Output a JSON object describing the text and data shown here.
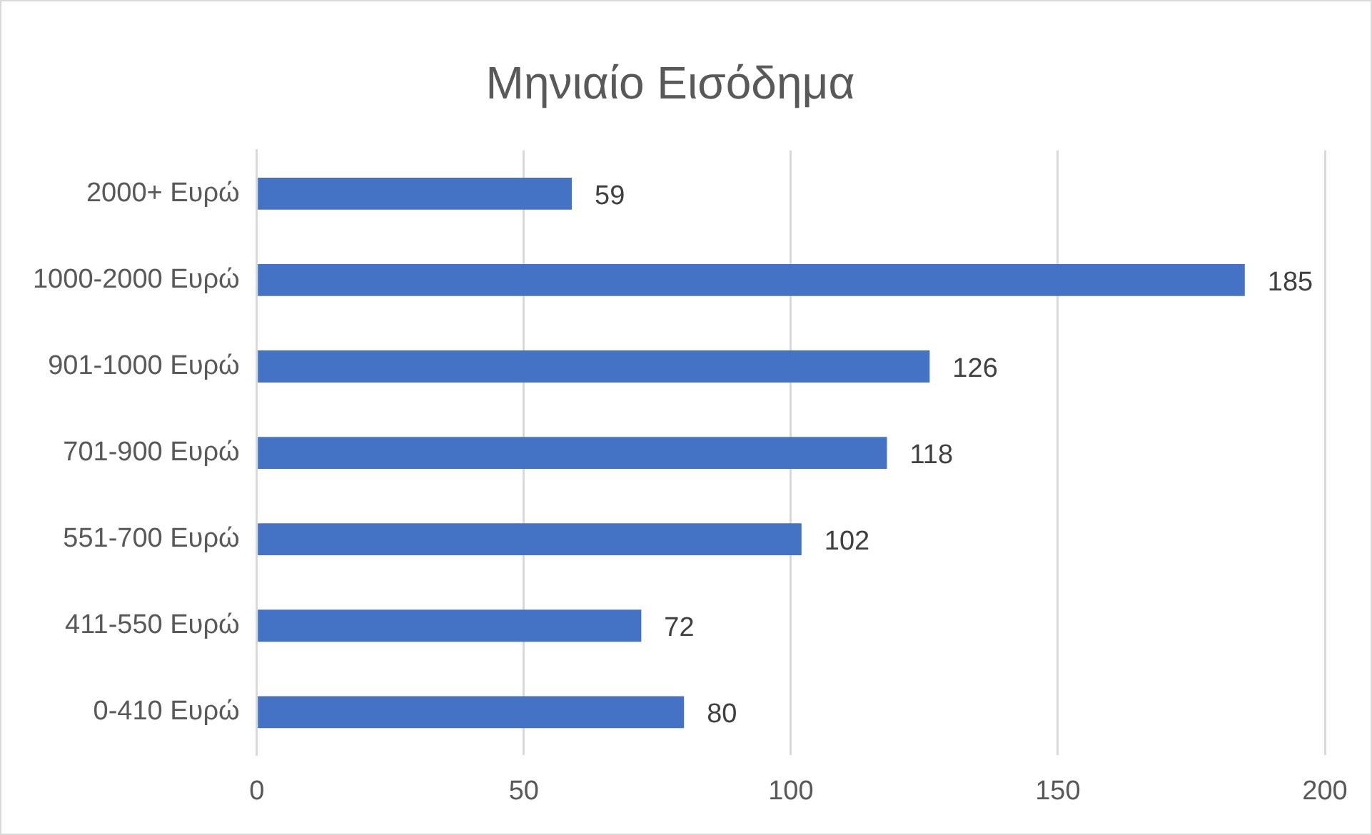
{
  "chart_data": {
    "type": "bar",
    "title": "Μηνιαίο Εισόδημα",
    "orientation": "horizontal",
    "categories": [
      "2000+ Ευρώ",
      "1000-2000 Ευρώ",
      "901-1000 Ευρώ",
      "701-900 Ευρώ",
      "551-700 Ευρώ",
      "411-550 Ευρώ",
      "0-410 Ευρώ"
    ],
    "values": [
      59,
      185,
      126,
      118,
      102,
      72,
      80
    ],
    "color": "#4472c4",
    "xlim": [
      0,
      200
    ],
    "xticks": [
      0,
      50,
      100,
      150,
      200
    ],
    "grid": "x",
    "legend": false,
    "data_labels": true
  }
}
